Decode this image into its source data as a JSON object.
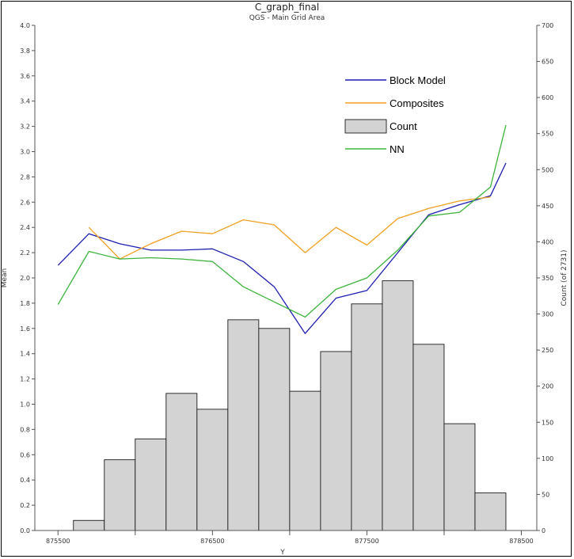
{
  "chart_data": {
    "type": "line",
    "title": "C_graph_final",
    "subtitle": "QGS - Main Grid Area",
    "xlabel": "Y",
    "ylabel": "Mean",
    "y2label": "Count (of 2731)",
    "xlim": [
      875350,
      878600
    ],
    "ylim": [
      0,
      4.0
    ],
    "y2lim": [
      0,
      700
    ],
    "x_ticks": [
      875500,
      876500,
      877500,
      878500
    ],
    "x_tick_labels": [
      "875500",
      "876500",
      "877500",
      "878500"
    ],
    "x_minor_ticks": [
      876000,
      877000,
      878000
    ],
    "y_ticks": [
      0.0,
      0.2,
      0.4,
      0.6,
      0.8,
      1.0,
      1.2,
      1.4,
      1.6,
      1.8,
      2.0,
      2.2,
      2.4,
      2.6,
      2.8,
      3.0,
      3.2,
      3.4,
      3.6,
      3.8,
      4.0
    ],
    "y_tick_labels": [
      "0.0",
      "0.2",
      "0.4",
      "0.6",
      "0.8",
      "1.0",
      "1.2",
      "1.4",
      "1.6",
      "1.8",
      "2.0",
      "2.2",
      "2.4",
      "2.6",
      "2.8",
      "3.0",
      "3.2",
      "3.4",
      "3.6",
      "3.8",
      "4.0"
    ],
    "y2_ticks": [
      0,
      50,
      100,
      150,
      200,
      250,
      300,
      350,
      400,
      450,
      500,
      550,
      600,
      650,
      700
    ],
    "y2_tick_labels": [
      "0",
      "50",
      "100",
      "150",
      "200",
      "250",
      "300",
      "350",
      "400",
      "450",
      "500",
      "550",
      "600",
      "650",
      "700"
    ],
    "grid": false,
    "legend_position": "top-right",
    "legend": [
      {
        "label": "Block Model",
        "kind": "line",
        "color": "#1c1cb0"
      },
      {
        "label": "Composites",
        "kind": "line",
        "color": "#f0a020"
      },
      {
        "label": "Count",
        "kind": "box",
        "color": "#d3d3d3"
      },
      {
        "label": "NN",
        "kind": "line",
        "color": "#3cb43c"
      }
    ],
    "bars": {
      "name": "Count",
      "color": "#d3d3d3",
      "bin_width": 200,
      "bin_starts": [
        875600,
        875800,
        876000,
        876200,
        876400,
        876600,
        876800,
        877000,
        877200,
        877400,
        877600,
        877800,
        878000,
        878200
      ],
      "values": [
        14,
        98,
        127,
        190,
        168,
        292,
        280,
        193,
        248,
        314,
        346,
        258,
        148,
        52
      ]
    },
    "series": [
      {
        "name": "Block Model",
        "color": "#1c1cb0",
        "x": [
          875500,
          875700,
          875900,
          876100,
          876300,
          876500,
          876700,
          876900,
          877100,
          877300,
          877500,
          877700,
          877900,
          878100,
          878300,
          878400
        ],
        "values": [
          2.1,
          2.35,
          2.27,
          2.22,
          2.22,
          2.23,
          2.13,
          1.93,
          1.56,
          1.84,
          1.9,
          2.2,
          2.5,
          2.58,
          2.65,
          2.91
        ]
      },
      {
        "name": "Composites",
        "color": "#f0a020",
        "x": [
          875700,
          875900,
          876100,
          876300,
          876500,
          876700,
          876900,
          877100,
          877300,
          877500,
          877700,
          877900,
          878100,
          878300
        ],
        "values": [
          2.4,
          2.15,
          2.27,
          2.37,
          2.35,
          2.46,
          2.42,
          2.2,
          2.4,
          2.26,
          2.47,
          2.55,
          2.61,
          2.64
        ]
      },
      {
        "name": "NN",
        "color": "#3cb43c",
        "x": [
          875500,
          875700,
          875900,
          876100,
          876300,
          876500,
          876700,
          876900,
          877100,
          877300,
          877500,
          877700,
          877900,
          878100,
          878300,
          878400
        ],
        "values": [
          1.79,
          2.21,
          2.15,
          2.16,
          2.15,
          2.13,
          1.93,
          1.81,
          1.69,
          1.91,
          2.0,
          2.22,
          2.49,
          2.52,
          2.72,
          3.21
        ]
      }
    ]
  }
}
